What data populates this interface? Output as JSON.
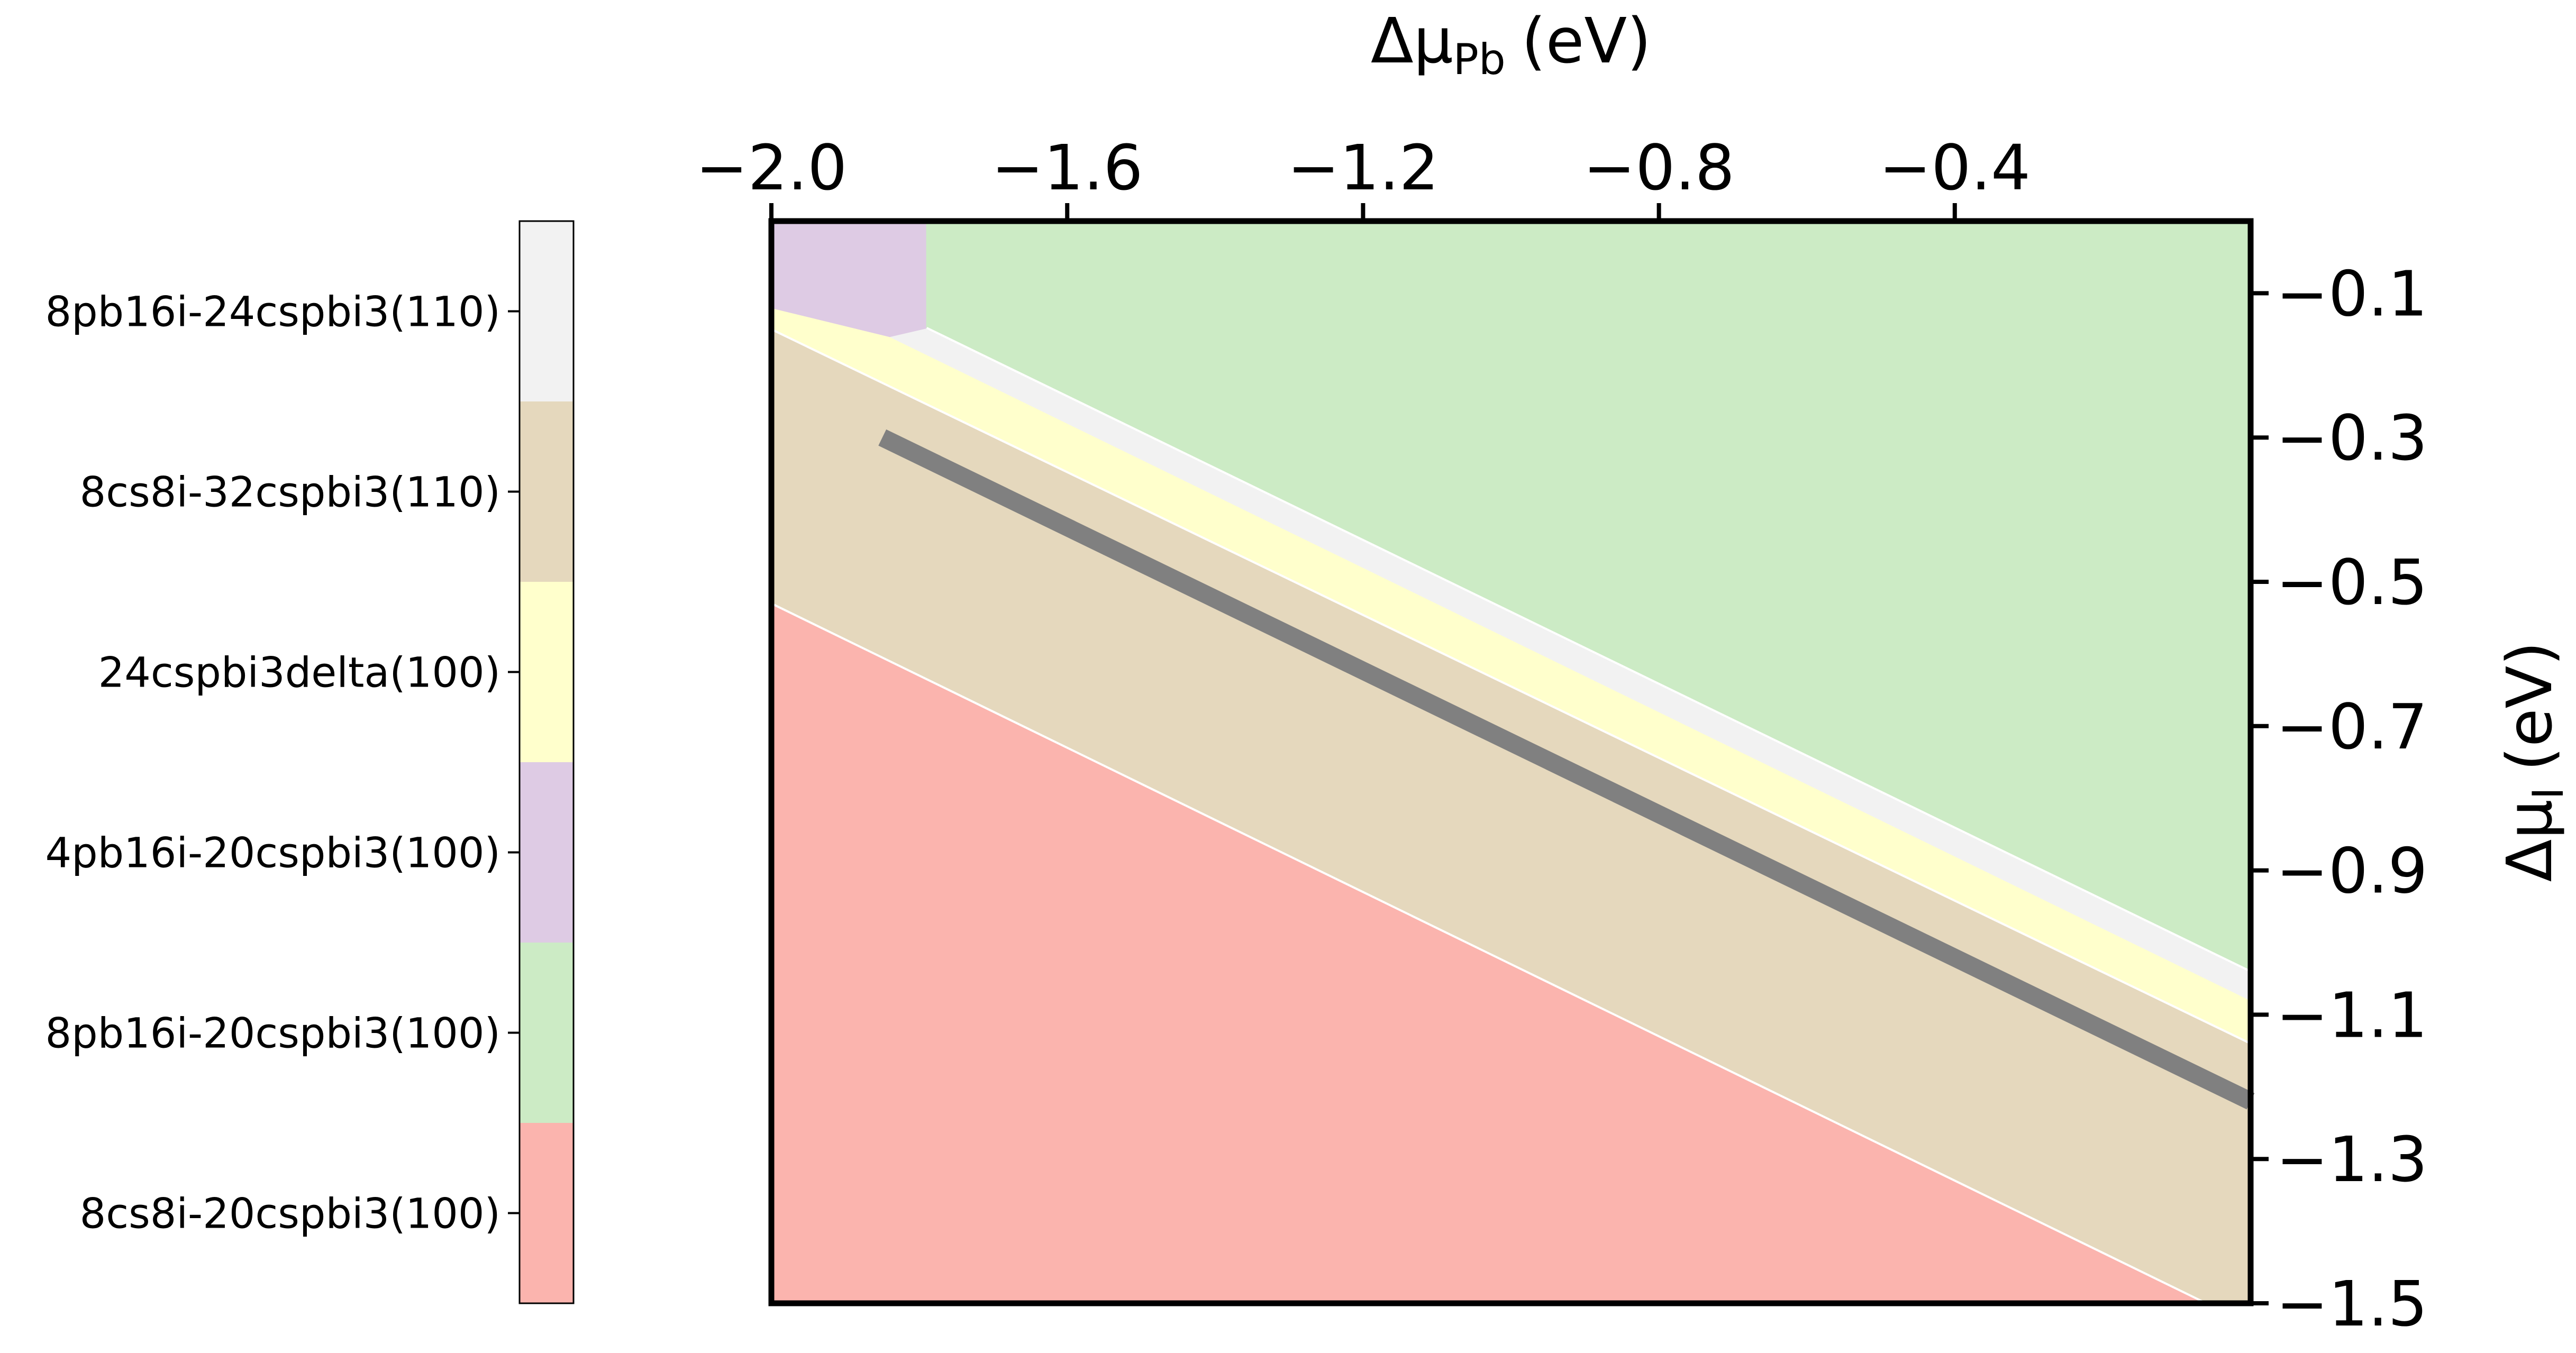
{
  "chart_data": {
    "type": "heatmap",
    "description_kind": "stability phase diagram",
    "xlabel": "Δμ",
    "xlabel_sub": "Pb",
    "xlabel_unit": "(eV)",
    "ylabel": "Δμ",
    "ylabel_sub": "I",
    "ylabel_unit": "(eV)",
    "x_axis_position": "top",
    "y_axis_position": "right",
    "xlim": [
      -2.0,
      0.0
    ],
    "ylim": [
      -1.5,
      0.0
    ],
    "x_ticks": [
      -2.0,
      -1.6,
      -1.2,
      -0.8,
      -0.4
    ],
    "x_tick_labels": [
      "−2.0",
      "−1.6",
      "−1.2",
      "−0.8",
      "−0.4"
    ],
    "y_ticks": [
      -0.1,
      -0.3,
      -0.5,
      -0.7,
      -0.9,
      -1.1,
      -1.3,
      -1.5
    ],
    "y_tick_labels": [
      "−0.1",
      "−0.3",
      "−0.5",
      "−0.7",
      "−0.9",
      "−1.1",
      "−1.3",
      "−1.5"
    ],
    "grid": false,
    "legend": "colorbar-left",
    "colorbar": [
      {
        "label": "8pb16i-24cspbi3(110)",
        "color": "#f2f2f2"
      },
      {
        "label": "8cs8i-32cspbi3(110)",
        "color": "#e5d8bd"
      },
      {
        "label": "24cspbi3delta(100)",
        "color": "#ffffcc"
      },
      {
        "label": "4pb16i-20cspbi3(100)",
        "color": "#decbe4"
      },
      {
        "label": "8pb16i-20cspbi3(100)",
        "color": "#ccebc5"
      },
      {
        "label": "8cs8i-20cspbi3(100)",
        "color": "#fbb4ae"
      }
    ],
    "regions": [
      {
        "label": "8cs8i-20cspbi3(100)",
        "color": "#fbb4ae",
        "polygon": [
          [
            -2.0,
            -0.53
          ],
          [
            -0.06,
            -1.5
          ],
          [
            -2.0,
            -1.5
          ]
        ]
      },
      {
        "label": "8cs8i-32cspbi3(110)",
        "color": "#e5d8bd",
        "polygon": [
          [
            -2.0,
            -0.15
          ],
          [
            0.0,
            -1.14
          ],
          [
            0.0,
            -1.5
          ],
          [
            -0.06,
            -1.5
          ],
          [
            -2.0,
            -0.53
          ]
        ]
      },
      {
        "label": "24cspbi3delta(100)",
        "color": "#ffffcc",
        "polygon": [
          [
            -2.0,
            -0.12
          ],
          [
            -1.84,
            -0.16
          ],
          [
            0.0,
            -1.08
          ],
          [
            0.0,
            -1.14
          ],
          [
            -2.0,
            -0.15
          ]
        ]
      },
      {
        "label": "8pb16i-24cspbi3(110)",
        "color": "#f2f2f2",
        "polygon": [
          [
            -1.84,
            -0.16
          ],
          [
            -1.79,
            -0.148
          ],
          [
            0.0,
            -1.04
          ],
          [
            0.0,
            -1.08
          ]
        ]
      },
      {
        "label": "4pb16i-20cspbi3(100)",
        "color": "#decbe4",
        "polygon": [
          [
            -2.0,
            0.0
          ],
          [
            -1.79,
            0.0
          ],
          [
            -1.79,
            -0.148
          ],
          [
            -1.84,
            -0.16
          ],
          [
            -2.0,
            -0.12
          ]
        ]
      },
      {
        "label": "8pb16i-20cspbi3(100)",
        "color": "#ccebc5",
        "polygon": [
          [
            -1.79,
            0.0
          ],
          [
            0.0,
            0.0
          ],
          [
            0.0,
            -1.04
          ],
          [
            -1.79,
            -0.148
          ]
        ]
      }
    ],
    "line": {
      "color": "#808080",
      "points": [
        [
          -1.85,
          -0.3
        ],
        [
          0.0,
          -1.22
        ]
      ]
    }
  }
}
